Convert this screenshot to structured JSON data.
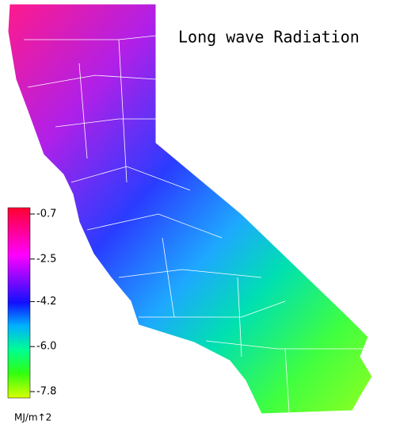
{
  "title": "Long wave Radiation",
  "colorbar": {
    "lim": [
      -7.8,
      -0.7
    ],
    "ticks": [
      -0.7,
      -2.5,
      -4.2,
      {
        "value": -6,
        "label": "-6.0"
      },
      -7.8
    ],
    "unit": "MJ/m↑2"
  }
}
